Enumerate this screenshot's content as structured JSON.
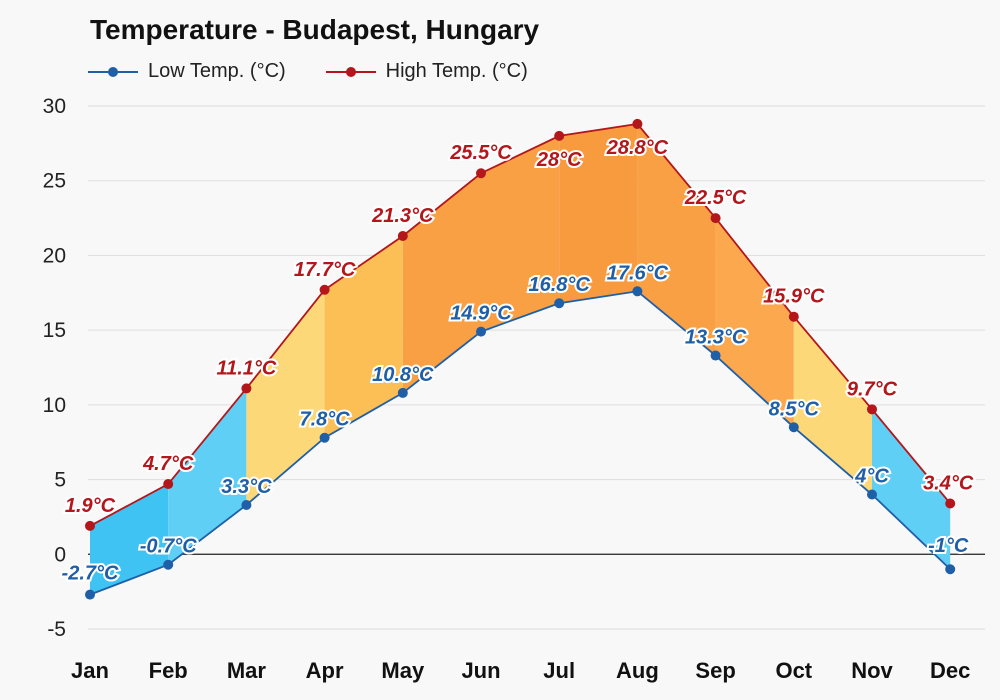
{
  "title": "Temperature - Budapest, Hungary",
  "legend": {
    "low_label": "Low Temp. (°C)",
    "high_label": "High Temp. (°C)"
  },
  "colors": {
    "low": "#1f5fa8",
    "high": "#b3161b",
    "background": "#f8f8f8",
    "grid": "#dddddd",
    "zero_line": "#222222"
  },
  "chart_data": {
    "type": "line",
    "title": "Temperature - Budapest, Hungary",
    "xlabel": "",
    "ylabel": "",
    "categories": [
      "Jan",
      "Feb",
      "Mar",
      "Apr",
      "May",
      "Jun",
      "Jul",
      "Aug",
      "Sep",
      "Oct",
      "Nov",
      "Dec"
    ],
    "ylim": [
      -5,
      30
    ],
    "yticks": [
      30,
      25,
      20,
      15,
      10,
      5,
      0,
      -5
    ],
    "grid": true,
    "legend_position": "top-left",
    "series": [
      {
        "name": "Low Temp. (°C)",
        "values": [
          -2.7,
          -0.7,
          3.3,
          7.8,
          10.8,
          14.9,
          16.8,
          17.6,
          13.3,
          8.5,
          4,
          -1
        ],
        "labels": [
          "-2.7°C",
          "-0.7°C",
          "3.3°C",
          "7.8°C",
          "10.8°C",
          "14.9°C",
          "16.8°C",
          "17.6°C",
          "13.3°C",
          "8.5°C",
          "4°C",
          "-1°C"
        ]
      },
      {
        "name": "High Temp. (°C)",
        "values": [
          1.9,
          4.7,
          11.1,
          17.7,
          21.3,
          25.5,
          28,
          28.8,
          22.5,
          15.9,
          9.7,
          3.4
        ],
        "labels": [
          "1.9°C",
          "4.7°C",
          "11.1°C",
          "17.7°C",
          "21.3°C",
          "25.5°C",
          "28°C",
          "28.8°C",
          "22.5°C",
          "15.9°C",
          "9.7°C",
          "3.4°C"
        ]
      }
    ]
  }
}
